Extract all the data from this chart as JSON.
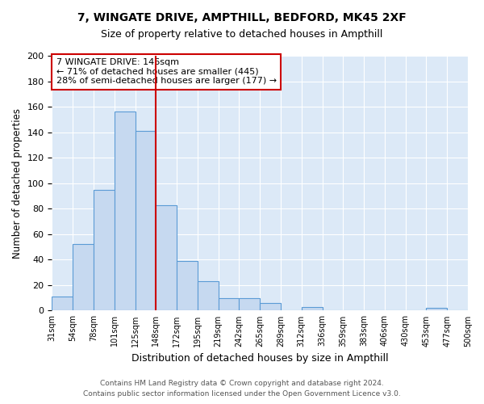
{
  "title": "7, WINGATE DRIVE, AMPTHILL, BEDFORD, MK45 2XF",
  "subtitle": "Size of property relative to detached houses in Ampthill",
  "xlabel": "Distribution of detached houses by size in Ampthill",
  "ylabel": "Number of detached properties",
  "bar_values": [
    11,
    52,
    95,
    156,
    141,
    83,
    39,
    23,
    10,
    10,
    6,
    0,
    3,
    0,
    0,
    0,
    0,
    0,
    2,
    0
  ],
  "bar_labels": [
    "31sqm",
    "54sqm",
    "78sqm",
    "101sqm",
    "125sqm",
    "148sqm",
    "172sqm",
    "195sqm",
    "219sqm",
    "242sqm",
    "265sqm",
    "289sqm",
    "312sqm",
    "336sqm",
    "359sqm",
    "383sqm",
    "406sqm",
    "430sqm",
    "453sqm",
    "477sqm",
    "500sqm"
  ],
  "bar_color": "#c6d9f0",
  "bar_edge_color": "#5b9bd5",
  "vline_color": "#cc0000",
  "vline_bar_index": 5,
  "annotation_text": "7 WINGATE DRIVE: 146sqm\n← 71% of detached houses are smaller (445)\n28% of semi-detached houses are larger (177) →",
  "annotation_box_facecolor": "#ffffff",
  "annotation_box_edgecolor": "#cc0000",
  "ylim": [
    0,
    200
  ],
  "yticks": [
    0,
    20,
    40,
    60,
    80,
    100,
    120,
    140,
    160,
    180,
    200
  ],
  "fig_bg_color": "#ffffff",
  "plot_bg_color": "#dce9f7",
  "grid_color": "#ffffff",
  "footer_line1": "Contains HM Land Registry data © Crown copyright and database right 2024.",
  "footer_line2": "Contains public sector information licensed under the Open Government Licence v3.0."
}
